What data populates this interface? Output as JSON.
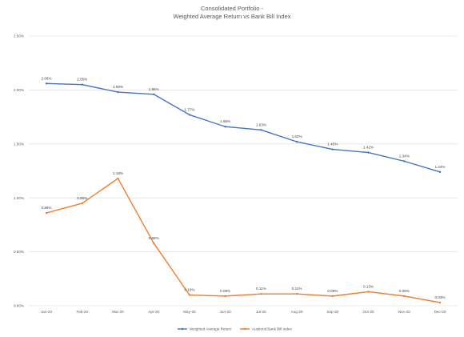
{
  "chart_data": {
    "type": "line",
    "title_line1": "Consolidated Portfolio -",
    "title_line2": "Weighted Average Return vs Bank Bill Index",
    "categories": [
      "Jan-20",
      "Feb-20",
      "Mar-20",
      "Apr-20",
      "May-20",
      "Jun-20",
      "Jul-20",
      "Aug-20",
      "Sep-20",
      "Oct-20",
      "Nov-20",
      "Dec-20"
    ],
    "y_ticks": [
      "0.00%",
      "0.50%",
      "1.00%",
      "1.50%",
      "2.00%",
      "2.50%"
    ],
    "y_tick_values": [
      0,
      0.5,
      1.0,
      1.5,
      2.0,
      2.5
    ],
    "ylim": [
      0,
      2.5
    ],
    "grid": true,
    "legend_position": "bottom",
    "series": [
      {
        "name": "Weighted Average Return",
        "color": "#4472c4",
        "values": [
          2.06,
          2.05,
          1.98,
          1.96,
          1.77,
          1.66,
          1.63,
          1.52,
          1.45,
          1.42,
          1.34,
          1.24
        ],
        "labels": [
          "2.06%",
          "2.05%",
          "1.98%",
          "1.96%",
          "1.77%",
          "1.66%",
          "1.63%",
          "1.52%",
          "1.45%",
          "1.42%",
          "1.34%",
          "1.24%"
        ]
      },
      {
        "name": "Ausbond Bank Bill Index",
        "color": "#ed7d31",
        "values": [
          0.86,
          0.95,
          1.18,
          0.58,
          0.1,
          0.09,
          0.11,
          0.11,
          0.09,
          0.13,
          0.09,
          0.03
        ],
        "labels": [
          "0.86%",
          "0.95%",
          "1.18%",
          "0.58%",
          "0.10%",
          "0.09%",
          "0.11%",
          "0.11%",
          "0.09%",
          "0.13%",
          "0.09%",
          "0.03%"
        ]
      }
    ]
  }
}
